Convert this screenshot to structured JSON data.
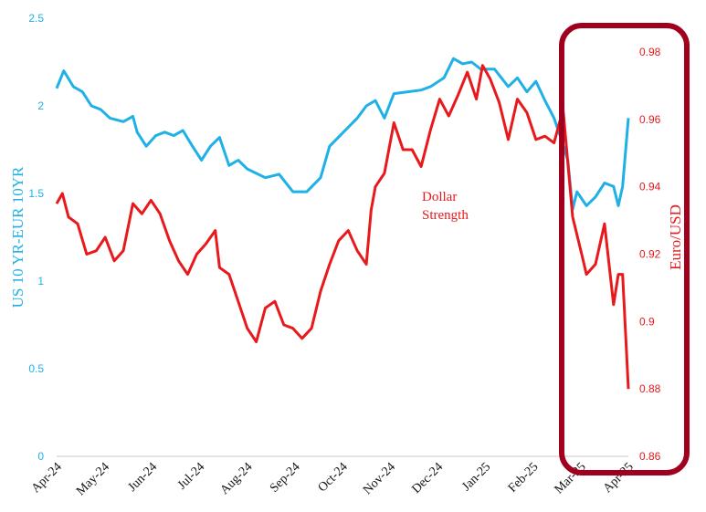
{
  "chart_data": {
    "type": "line",
    "title": "",
    "xlabel": "",
    "categories": [
      "Apr-24",
      "May-24",
      "Jun-24",
      "Jul-24",
      "Aug-24",
      "Sep-24",
      "Oct-24",
      "Nov-24",
      "Dec-24",
      "Jan-25",
      "Feb-25",
      "Mar-25",
      "Apr-25"
    ],
    "xlim": [
      0,
      12
    ],
    "left_axis": {
      "label": "US 10 YR-EUR 10YR",
      "ylim": [
        0,
        2.5
      ],
      "ticks": [
        "0",
        "0.5",
        "1",
        "1.5",
        "2",
        "2.5"
      ],
      "color": "#1fb1e6"
    },
    "right_axis": {
      "label": "Euro/USD",
      "ylim": [
        0.86,
        0.99
      ],
      "ticks": [
        "0.86",
        "0.88",
        "0.9",
        "0.92",
        "0.94",
        "0.96",
        "0.98"
      ],
      "color": "#e8191c"
    },
    "grid": false,
    "annotation": {
      "text_line1": "Dollar",
      "text_line2": "Strength"
    },
    "highlight_color": "#a0001e",
    "series": [
      {
        "name": "US 10 YR-EUR 10YR",
        "axis": "left",
        "color": "#1fb1e6",
        "x": [
          0,
          0.15,
          0.35,
          0.54,
          0.73,
          0.92,
          1.12,
          1.4,
          1.6,
          1.69,
          1.88,
          2.08,
          2.27,
          2.46,
          2.65,
          2.85,
          3.04,
          3.23,
          3.42,
          3.62,
          3.81,
          4.0,
          4.38,
          4.67,
          4.96,
          5.25,
          5.54,
          5.73,
          6.02,
          6.31,
          6.5,
          6.69,
          6.88,
          7.08,
          7.37,
          7.65,
          7.85,
          8.13,
          8.33,
          8.52,
          8.71,
          8.9,
          9.19,
          9.48,
          9.67,
          9.87,
          10.06,
          10.25,
          10.44,
          10.58,
          10.73,
          10.83,
          10.92,
          11.12,
          11.31,
          11.5,
          11.69,
          11.79,
          11.88,
          12
        ],
        "values": [
          2.1,
          2.2,
          2.11,
          2.08,
          2.0,
          1.98,
          1.93,
          1.91,
          1.94,
          1.85,
          1.77,
          1.83,
          1.85,
          1.83,
          1.86,
          1.77,
          1.69,
          1.77,
          1.82,
          1.66,
          1.69,
          1.64,
          1.59,
          1.61,
          1.51,
          1.51,
          1.59,
          1.77,
          1.85,
          1.93,
          2.0,
          2.03,
          1.93,
          2.07,
          2.08,
          2.09,
          2.11,
          2.16,
          2.27,
          2.24,
          2.25,
          2.21,
          2.21,
          2.11,
          2.16,
          2.08,
          2.14,
          2.03,
          1.93,
          1.82,
          1.69,
          1.41,
          1.51,
          1.43,
          1.48,
          1.56,
          1.54,
          1.43,
          1.54,
          1.93
        ]
      },
      {
        "name": "Euro/USD",
        "axis": "right",
        "color": "#e8191c",
        "x": [
          0,
          0.12,
          0.25,
          0.44,
          0.63,
          0.83,
          1.02,
          1.21,
          1.4,
          1.6,
          1.79,
          1.98,
          2.17,
          2.37,
          2.56,
          2.75,
          2.94,
          3.13,
          3.33,
          3.42,
          3.62,
          3.81,
          4.0,
          4.19,
          4.38,
          4.58,
          4.77,
          4.96,
          5.15,
          5.35,
          5.54,
          5.73,
          5.92,
          6.12,
          6.31,
          6.5,
          6.6,
          6.69,
          6.88,
          7.08,
          7.27,
          7.46,
          7.65,
          7.85,
          8.04,
          8.23,
          8.42,
          8.62,
          8.81,
          8.94,
          9.1,
          9.29,
          9.48,
          9.67,
          9.87,
          10.06,
          10.25,
          10.44,
          10.63,
          10.83,
          11.02,
          11.12,
          11.31,
          11.5,
          11.69,
          11.79,
          11.88,
          12
        ],
        "values": [
          0.935,
          0.938,
          0.931,
          0.929,
          0.92,
          0.921,
          0.925,
          0.918,
          0.921,
          0.935,
          0.932,
          0.936,
          0.932,
          0.924,
          0.918,
          0.914,
          0.92,
          0.923,
          0.927,
          0.916,
          0.914,
          0.906,
          0.898,
          0.894,
          0.904,
          0.906,
          0.899,
          0.898,
          0.895,
          0.898,
          0.909,
          0.917,
          0.924,
          0.927,
          0.921,
          0.917,
          0.933,
          0.94,
          0.944,
          0.959,
          0.951,
          0.951,
          0.946,
          0.957,
          0.966,
          0.961,
          0.967,
          0.974,
          0.966,
          0.976,
          0.972,
          0.965,
          0.954,
          0.966,
          0.962,
          0.954,
          0.955,
          0.953,
          0.963,
          0.931,
          0.92,
          0.914,
          0.917,
          0.929,
          0.905,
          0.914,
          0.914,
          0.88
        ]
      }
    ]
  }
}
